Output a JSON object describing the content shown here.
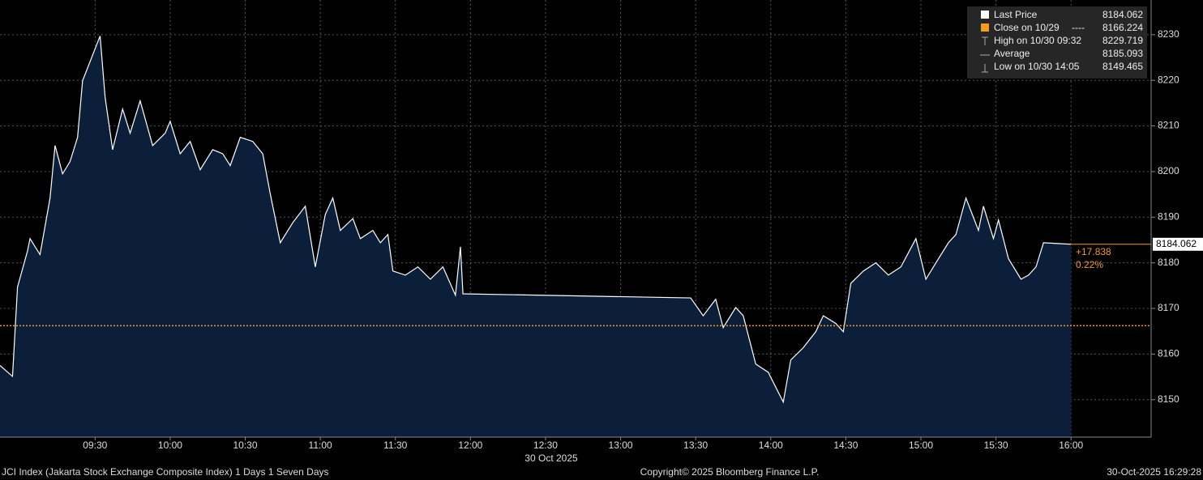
{
  "chart_data": {
    "type": "area",
    "x_label": "30 Oct 2025",
    "series": [
      {
        "name": "Last Price",
        "color": "#ffffff",
        "fill": "#0b1f3b",
        "x": [
          "08:52",
          "08:57",
          "08:59",
          "09:03",
          "09:04",
          "09:08",
          "09:12",
          "09:14",
          "09:17",
          "09:20",
          "09:23",
          "09:25",
          "09:32",
          "09:34",
          "09:37",
          "09:41",
          "09:44",
          "09:48",
          "09:53",
          "09:58",
          "10:00",
          "10:04",
          "10:08",
          "10:12",
          "10:17",
          "10:21",
          "10:24",
          "10:28",
          "10:33",
          "10:37",
          "10:40",
          "10:44",
          "10:49",
          "10:54",
          "10:58",
          "11:02",
          "11:05",
          "11:08",
          "11:13",
          "11:16",
          "11:21",
          "11:24",
          "11:27",
          "11:29",
          "11:34",
          "11:39",
          "11:44",
          "11:49",
          "11:54",
          "11:56",
          "11:57",
          "13:28",
          "13:33",
          "13:38",
          "13:41",
          "13:46",
          "13:49",
          "13:54",
          "13:59",
          "14:05",
          "14:08",
          "14:13",
          "14:18",
          "14:21",
          "14:26",
          "14:29",
          "14:32",
          "14:37",
          "14:42",
          "14:47",
          "14:52",
          "14:58",
          "15:02",
          "15:06",
          "15:11",
          "15:14",
          "15:18",
          "15:23",
          "15:25",
          "15:29",
          "15:31",
          "15:35",
          "15:40",
          "15:43",
          "15:46",
          "15:49",
          "16:00"
        ],
        "values": [
          8157.5,
          8155.1,
          8174.7,
          8182.6,
          8185.3,
          8181.8,
          8194.2,
          8205.7,
          8199.5,
          8202.2,
          8207.5,
          8219.9,
          8229.719,
          8216.3,
          8204.8,
          8213.7,
          8208.4,
          8215.5,
          8205.7,
          8208.4,
          8211.0,
          8203.9,
          8206.6,
          8200.4,
          8204.8,
          8203.9,
          8201.3,
          8207.5,
          8206.6,
          8203.9,
          8195.1,
          8184.4,
          8188.8,
          8192.4,
          8179.1,
          8190.6,
          8194.2,
          8187.1,
          8189.7,
          8185.3,
          8187.1,
          8184.4,
          8186.2,
          8178.2,
          8177.3,
          8179.1,
          8176.4,
          8179.1,
          8172.9,
          8183.5,
          8173.2,
          8172.3,
          8168.4,
          8172.0,
          8165.8,
          8170.2,
          8168.4,
          8157.8,
          8156.0,
          8149.465,
          8158.7,
          8161.4,
          8164.9,
          8168.4,
          8166.7,
          8164.9,
          8175.5,
          8178.2,
          8180.0,
          8177.3,
          8179.1,
          8185.3,
          8176.4,
          8180.0,
          8184.4,
          8186.2,
          8194.2,
          8187.1,
          8192.4,
          8185.3,
          8189.4,
          8180.9,
          8176.4,
          8177.3,
          8179.1,
          8184.4,
          8184.062
        ]
      }
    ],
    "close_line": {
      "value": 8166.224,
      "color": "#f39c1f"
    },
    "legend": [
      {
        "label": "Last Price",
        "value": 8184.062
      },
      {
        "label": "Close on 10/29",
        "style": "----",
        "value": 8166.224
      },
      {
        "label": "High on 10/30 09:32",
        "value": 8229.719
      },
      {
        "label": "Average",
        "value": 8185.093
      },
      {
        "label": "Low on 10/30 14:05",
        "value": 8149.465
      }
    ],
    "last_label": 8184.062,
    "change": "+17.838",
    "change_pct": "0.22%",
    "xlim": [
      "08:52",
      "16:32"
    ],
    "xticks": [
      "09:30",
      "10:00",
      "10:30",
      "11:00",
      "11:30",
      "12:00",
      "12:30",
      "13:00",
      "13:30",
      "14:00",
      "14:30",
      "15:00",
      "15:30",
      "16:00"
    ],
    "ylim": [
      8141.8,
      8237.6
    ],
    "yticks": [
      8150,
      8160,
      8170,
      8180,
      8190,
      8200,
      8210,
      8220,
      8230
    ],
    "grid": true,
    "footer_left": "JCI Index (Jakarta Stock Exchange Composite Index) 1 Days 1 Seven Days",
    "footer_center": "Copyright© 2025 Bloomberg Finance L.P.",
    "footer_right": "30-Oct-2025 16:29:28"
  }
}
